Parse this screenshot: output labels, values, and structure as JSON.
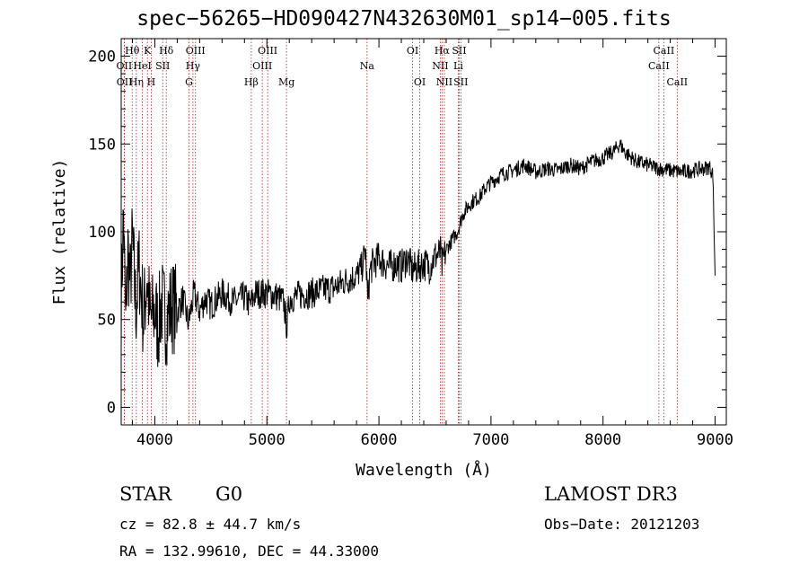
{
  "figure": {
    "title": "spec−56265−HD090427N432630M01_sp14−005.fits",
    "class_label": "STAR",
    "subclass_label": "G0",
    "survey_label": "LAMOST DR3",
    "cz_text": "cz = 82.8 ± 44.7 km/s",
    "obs_date_text": "Obs−Date: 20121203",
    "radec_text": "RA = 132.99610, DEC =  44.33000"
  },
  "chart_data": {
    "type": "line",
    "title": "spec−56265−HD090427N432630M01_sp14−005.fits",
    "xlabel": "Wavelength (Å)",
    "ylabel": "Flux (relative)",
    "xlim": [
      3700,
      9100
    ],
    "ylim": [
      -10,
      210
    ],
    "xticks": [
      4000,
      5000,
      6000,
      7000,
      8000,
      9000
    ],
    "yticks": [
      0,
      50,
      100,
      150,
      200
    ],
    "grid": false,
    "series": [
      {
        "color": "#000000",
        "x": [
          3700,
          3720,
          3740,
          3760,
          3780,
          3800,
          3830,
          3860,
          3900,
          3930,
          3960,
          4000,
          4030,
          4060,
          4100,
          4150,
          4200,
          4250,
          4300,
          4350,
          4400,
          4450,
          4500,
          4600,
          4700,
          4800,
          4850,
          4900,
          5000,
          5100,
          5150,
          5180,
          5200,
          5300,
          5400,
          5500,
          5600,
          5700,
          5800,
          5850,
          5880,
          5900,
          5920,
          5950,
          6000,
          6050,
          6100,
          6150,
          6200,
          6250,
          6300,
          6350,
          6400,
          6450,
          6500,
          6550,
          6563,
          6600,
          6650,
          6700,
          6750,
          6800,
          6850,
          6900,
          6950,
          7000,
          7100,
          7200,
          7300,
          7400,
          7500,
          7600,
          7700,
          7800,
          7900,
          8000,
          8100,
          8150,
          8200,
          8300,
          8400,
          8500,
          8600,
          8700,
          8800,
          8900,
          8950,
          8980,
          9000
        ],
        "y": [
          60,
          110,
          45,
          90,
          70,
          95,
          55,
          80,
          50,
          75,
          48,
          55,
          45,
          60,
          50,
          58,
          55,
          62,
          48,
          65,
          55,
          62,
          58,
          65,
          60,
          63,
          58,
          65,
          65,
          63,
          60,
          45,
          62,
          64,
          65,
          67,
          68,
          72,
          75,
          80,
          90,
          60,
          78,
          82,
          85,
          82,
          80,
          82,
          80,
          85,
          78,
          80,
          82,
          80,
          86,
          88,
          80,
          90,
          95,
          100,
          110,
          115,
          118,
          120,
          125,
          128,
          133,
          135,
          138,
          134,
          136,
          135,
          138,
          136,
          140,
          142,
          146,
          150,
          145,
          140,
          138,
          136,
          135,
          134,
          135,
          136,
          137,
          133,
          75
        ]
      }
    ],
    "lines": [
      {
        "name": "Hθ",
        "wavelength": 3798,
        "row": 0
      },
      {
        "name": "Hη",
        "wavelength": 3835,
        "row": 2
      },
      {
        "name": "OII",
        "wavelength": 3727,
        "row": 1
      },
      {
        "name": "OII",
        "wavelength": 3729,
        "row": 2
      },
      {
        "name": "HeI",
        "wavelength": 3889,
        "row": 1
      },
      {
        "name": "K",
        "wavelength": 3934,
        "row": 0
      },
      {
        "name": "H",
        "wavelength": 3968,
        "row": 2
      },
      {
        "name": "SII",
        "wavelength": 4070,
        "row": 1
      },
      {
        "name": "Hδ",
        "wavelength": 4102,
        "row": 0
      },
      {
        "name": "OIII",
        "wavelength": 4363,
        "row": 0
      },
      {
        "name": "Hγ",
        "wavelength": 4340,
        "row": 1
      },
      {
        "name": "G",
        "wavelength": 4305,
        "row": 2
      },
      {
        "name": "Hβ",
        "wavelength": 4861,
        "row": 2
      },
      {
        "name": "OIII",
        "wavelength": 4959,
        "row": 1
      },
      {
        "name": "OIII",
        "wavelength": 5007,
        "row": 0
      },
      {
        "name": "Mg",
        "wavelength": 5175,
        "row": 2
      },
      {
        "name": "Na",
        "wavelength": 5894,
        "row": 1
      },
      {
        "name": "OI",
        "wavelength": 6300,
        "row": 0
      },
      {
        "name": "OI",
        "wavelength": 6364,
        "row": 2
      },
      {
        "name": "NII",
        "wavelength": 6548,
        "row": 1
      },
      {
        "name": "Hα",
        "wavelength": 6563,
        "row": 0
      },
      {
        "name": "NII",
        "wavelength": 6584,
        "row": 2
      },
      {
        "name": "Li",
        "wavelength": 6708,
        "row": 1
      },
      {
        "name": "SII",
        "wavelength": 6716,
        "row": 0
      },
      {
        "name": "SII",
        "wavelength": 6731,
        "row": 2
      },
      {
        "name": "CaII",
        "wavelength": 8498,
        "row": 1
      },
      {
        "name": "CaII",
        "wavelength": 8542,
        "row": 0
      },
      {
        "name": "CaII",
        "wavelength": 8662,
        "row": 2
      }
    ]
  }
}
